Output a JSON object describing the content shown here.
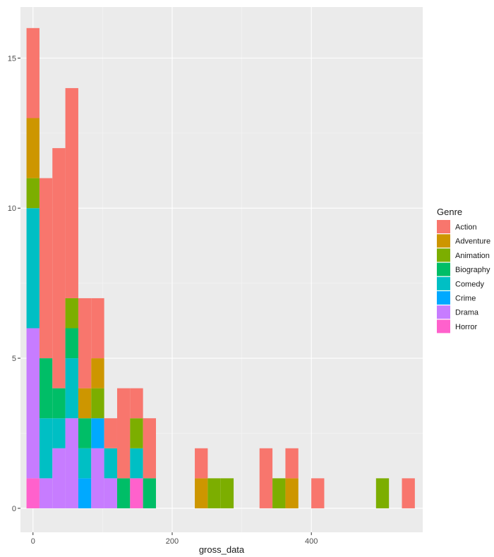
{
  "chart_data": {
    "type": "bar",
    "stacked": true,
    "histogram": true,
    "xlabel": "gross_data",
    "ylabel": "",
    "xlim": [
      -18,
      560
    ],
    "ylim": [
      -0.8,
      16.7
    ],
    "x_ticks": [
      0,
      200,
      400
    ],
    "y_ticks": [
      0,
      5,
      10,
      15
    ],
    "grid": true,
    "legend_position": "right",
    "legend_title": "Genre",
    "bin_width": 18.6,
    "genres": [
      "Action",
      "Adventure",
      "Animation",
      "Biography",
      "Comedy",
      "Crime",
      "Drama",
      "Horror"
    ],
    "colors": {
      "Action": "#F8766D",
      "Adventure": "#CD9600",
      "Animation": "#7CAE00",
      "Biography": "#00BE67",
      "Comedy": "#00BFC4",
      "Crime": "#00A9FF",
      "Drama": "#C77CFF",
      "Horror": "#FF61CC"
    },
    "bins": [
      {
        "center": 0,
        "counts": {
          "Action": 3,
          "Adventure": 2,
          "Animation": 1,
          "Comedy": 4,
          "Drama": 5,
          "Horror": 1
        }
      },
      {
        "center": 18.6,
        "counts": {
          "Action": 6,
          "Biography": 2,
          "Comedy": 2,
          "Drama": 1
        }
      },
      {
        "center": 37.2,
        "counts": {
          "Action": 8,
          "Biography": 1,
          "Comedy": 1,
          "Drama": 2
        }
      },
      {
        "center": 55.8,
        "counts": {
          "Action": 7,
          "Animation": 1,
          "Biography": 1,
          "Comedy": 2,
          "Drama": 3
        }
      },
      {
        "center": 74.4,
        "counts": {
          "Action": 3,
          "Adventure": 1,
          "Biography": 1,
          "Comedy": 1,
          "Crime": 1
        }
      },
      {
        "center": 93.0,
        "counts": {
          "Action": 2,
          "Adventure": 1,
          "Animation": 1,
          "Crime": 1,
          "Drama": 2
        }
      },
      {
        "center": 111.6,
        "counts": {
          "Action": 1,
          "Comedy": 1,
          "Drama": 1
        }
      },
      {
        "center": 130.2,
        "counts": {
          "Action": 3,
          "Biography": 1
        }
      },
      {
        "center": 148.8,
        "counts": {
          "Action": 1,
          "Animation": 1,
          "Comedy": 1,
          "Horror": 1
        }
      },
      {
        "center": 167.4,
        "counts": {
          "Action": 2,
          "Biography": 1
        }
      },
      {
        "center": 241.8,
        "counts": {
          "Action": 1,
          "Adventure": 1
        }
      },
      {
        "center": 260.4,
        "counts": {
          "Animation": 1
        }
      },
      {
        "center": 279.0,
        "counts": {
          "Animation": 1
        }
      },
      {
        "center": 334.8,
        "counts": {
          "Action": 2
        }
      },
      {
        "center": 353.4,
        "counts": {
          "Animation": 1
        }
      },
      {
        "center": 372.0,
        "counts": {
          "Action": 1,
          "Adventure": 1
        }
      },
      {
        "center": 409.2,
        "counts": {
          "Action": 1
        }
      },
      {
        "center": 502.2,
        "counts": {
          "Animation": 1
        }
      },
      {
        "center": 539.4,
        "counts": {
          "Action": 1
        }
      }
    ]
  }
}
